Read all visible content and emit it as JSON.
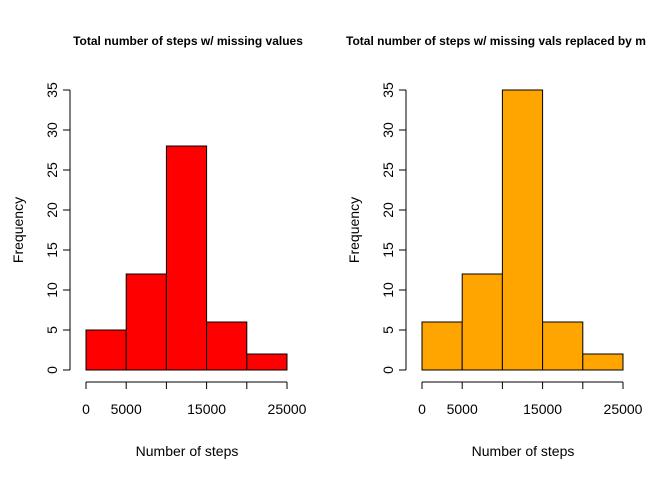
{
  "chart_data": [
    {
      "type": "bar",
      "title": "Total number of steps w/ missing values",
      "xlabel": "Number of steps",
      "ylabel": "Frequency",
      "bin_edges": [
        0,
        5000,
        10000,
        15000,
        20000,
        25000
      ],
      "values": [
        5,
        12,
        28,
        6,
        2
      ],
      "xticks": [
        0,
        5000,
        15000,
        25000
      ],
      "xtick_labels": [
        "0",
        "5000",
        "15000",
        "25000"
      ],
      "yticks": [
        0,
        5,
        10,
        15,
        20,
        25,
        30,
        35
      ],
      "ytick_labels": [
        "0",
        "5",
        "10",
        "15",
        "20",
        "25",
        "30",
        "35"
      ],
      "xlim": [
        0,
        25000
      ],
      "ylim": [
        0,
        35
      ],
      "bar_color": "#ff0000",
      "grid": false,
      "legend": "none"
    },
    {
      "type": "bar",
      "title": "Total number of steps w/ missing vals replaced by m",
      "xlabel": "Number of steps",
      "ylabel": "Frequency",
      "bin_edges": [
        0,
        5000,
        10000,
        15000,
        20000,
        25000
      ],
      "values": [
        6,
        12,
        35,
        6,
        2
      ],
      "xticks": [
        0,
        5000,
        15000,
        25000
      ],
      "xtick_labels": [
        "0",
        "5000",
        "15000",
        "25000"
      ],
      "yticks": [
        0,
        5,
        10,
        15,
        20,
        25,
        30,
        35
      ],
      "ytick_labels": [
        "0",
        "5",
        "10",
        "15",
        "20",
        "25",
        "30",
        "35"
      ],
      "xlim": [
        0,
        25000
      ],
      "ylim": [
        0,
        35
      ],
      "bar_color": "#ffa500",
      "grid": false,
      "legend": "none"
    }
  ]
}
